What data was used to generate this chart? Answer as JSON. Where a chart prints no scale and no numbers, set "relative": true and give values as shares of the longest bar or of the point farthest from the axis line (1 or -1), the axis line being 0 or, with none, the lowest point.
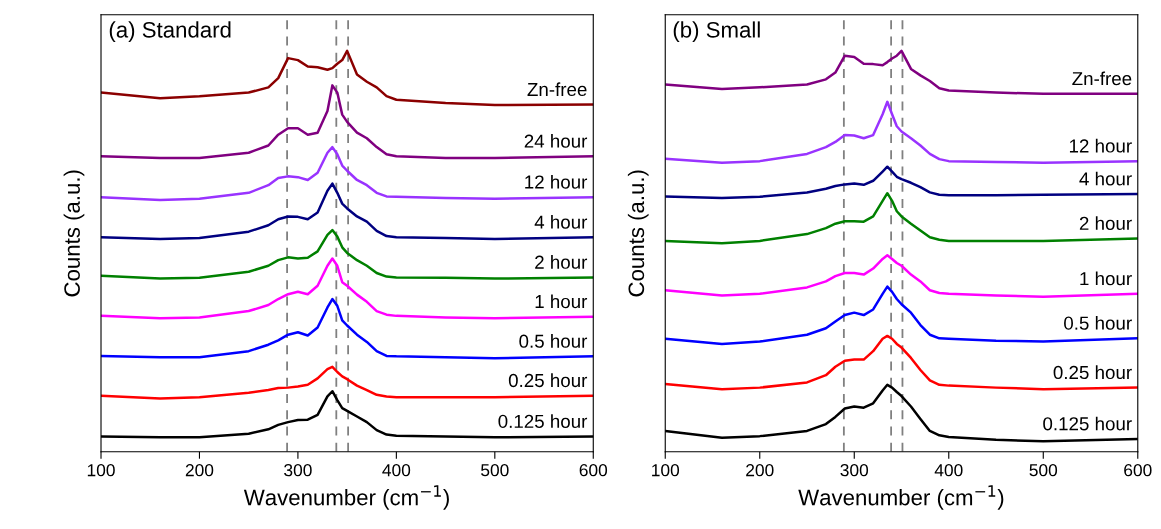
{
  "chart_data": [
    {
      "type": "line",
      "title": "(a) Standard",
      "xlabel": "Wavenumber (cm$^{−1}$)",
      "ylabel": "Counts (a.u.)",
      "relative": true,
      "tick_labels": "x",
      "grid": false,
      "legend": false,
      "xlim": [
        100,
        600
      ],
      "xticks": [
        100,
        200,
        300,
        400,
        500,
        600
      ],
      "x": [
        100,
        160,
        200,
        250,
        270,
        280,
        290,
        300,
        310,
        320,
        330,
        335,
        340,
        345,
        350,
        360,
        370,
        380,
        390,
        400,
        450,
        500,
        600
      ],
      "ref_lines": [
        {
          "axis": "x",
          "value": 289,
          "color": "#808080",
          "line_style": "dashed"
        },
        {
          "axis": "x",
          "value": 339,
          "color": "#808080",
          "line_style": "dashed"
        },
        {
          "axis": "x",
          "value": 351,
          "color": "#808080",
          "line_style": "dashed"
        }
      ],
      "series": [
        {
          "name": "Zn-free",
          "color": "#8b0000",
          "values": [
            0.896,
            0.882,
            0.887,
            0.896,
            0.909,
            0.932,
            0.982,
            0.977,
            0.961,
            0.959,
            0.953,
            0.957,
            0.968,
            0.977,
            1,
            0.941,
            0.923,
            0.909,
            0.887,
            0.878,
            0.87,
            0.865,
            0.866
          ]
        },
        {
          "name": "24 hour",
          "color": "#800080",
          "values": [
            0.737,
            0.733,
            0.733,
            0.746,
            0.764,
            0.791,
            0.807,
            0.807,
            0.791,
            0.796,
            0.85,
            0.914,
            0.896,
            0.841,
            0.823,
            0.796,
            0.782,
            0.76,
            0.742,
            0.737,
            0.733,
            0.733,
            0.737
          ]
        },
        {
          "name": "12 hour",
          "color": "#9933ff",
          "values": [
            0.635,
            0.628,
            0.631,
            0.646,
            0.665,
            0.683,
            0.687,
            0.685,
            0.678,
            0.696,
            0.746,
            0.76,
            0.742,
            0.714,
            0.701,
            0.678,
            0.665,
            0.646,
            0.637,
            0.636,
            0.633,
            0.631,
            0.635
          ]
        },
        {
          "name": "4 hour",
          "color": "#000080",
          "values": [
            0.535,
            0.531,
            0.533,
            0.549,
            0.565,
            0.58,
            0.587,
            0.586,
            0.58,
            0.597,
            0.651,
            0.669,
            0.646,
            0.619,
            0.607,
            0.587,
            0.574,
            0.551,
            0.538,
            0.535,
            0.533,
            0.531,
            0.535
          ]
        },
        {
          "name": "2 hour",
          "color": "#008000",
          "values": [
            0.439,
            0.432,
            0.434,
            0.449,
            0.464,
            0.478,
            0.485,
            0.482,
            0.484,
            0.5,
            0.541,
            0.553,
            0.537,
            0.51,
            0.496,
            0.478,
            0.464,
            0.446,
            0.437,
            0.435,
            0.434,
            0.432,
            0.435
          ]
        },
        {
          "name": "1 hour",
          "color": "#ff00ff",
          "values": [
            0.339,
            0.333,
            0.335,
            0.351,
            0.366,
            0.381,
            0.393,
            0.399,
            0.393,
            0.414,
            0.464,
            0.482,
            0.464,
            0.423,
            0.414,
            0.392,
            0.374,
            0.351,
            0.342,
            0.339,
            0.335,
            0.333,
            0.337
          ]
        },
        {
          "name": "0.5 hour",
          "color": "#0000ff",
          "values": [
            0.239,
            0.236,
            0.236,
            0.251,
            0.267,
            0.278,
            0.292,
            0.298,
            0.29,
            0.31,
            0.36,
            0.381,
            0.364,
            0.328,
            0.315,
            0.292,
            0.274,
            0.251,
            0.239,
            0.238,
            0.236,
            0.233,
            0.238
          ]
        },
        {
          "name": "0.25 hour",
          "color": "#ff0000",
          "values": [
            0.14,
            0.133,
            0.136,
            0.147,
            0.154,
            0.159,
            0.16,
            0.163,
            0.167,
            0.183,
            0.206,
            0.212,
            0.199,
            0.188,
            0.181,
            0.165,
            0.154,
            0.142,
            0.138,
            0.136,
            0.136,
            0.136,
            0.14
          ]
        },
        {
          "name": "0.125 hour",
          "color": "#000000",
          "values": [
            0.038,
            0.036,
            0.036,
            0.045,
            0.056,
            0.067,
            0.074,
            0.079,
            0.08,
            0.092,
            0.138,
            0.151,
            0.129,
            0.109,
            0.102,
            0.088,
            0.074,
            0.054,
            0.043,
            0.04,
            0.038,
            0.036,
            0.038
          ]
        }
      ]
    },
    {
      "type": "line",
      "title": "(b) Small",
      "xlabel": "Wavenumber (cm$^{−1}$)",
      "ylabel": "Counts (a.u.)",
      "relative": true,
      "tick_labels": "x",
      "grid": false,
      "legend": false,
      "xlim": [
        100,
        600
      ],
      "xticks": [
        100,
        200,
        300,
        400,
        500,
        600
      ],
      "x": [
        100,
        160,
        200,
        250,
        270,
        280,
        290,
        300,
        310,
        320,
        330,
        335,
        340,
        345,
        350,
        360,
        370,
        380,
        390,
        400,
        450,
        500,
        600
      ],
      "ref_lines": [
        {
          "axis": "x",
          "value": 289,
          "color": "#808080",
          "line_style": "dashed"
        },
        {
          "axis": "x",
          "value": 339,
          "color": "#808080",
          "line_style": "dashed"
        },
        {
          "axis": "x",
          "value": 351,
          "color": "#808080",
          "line_style": "dashed"
        }
      ],
      "series": [
        {
          "name": "Zn-free",
          "color": "#800080",
          "values": [
            0.916,
            0.905,
            0.909,
            0.916,
            0.929,
            0.946,
            0.988,
            0.985,
            0.968,
            0.967,
            0.964,
            0.972,
            0.981,
            0.988,
            1,
            0.955,
            0.939,
            0.925,
            0.907,
            0.901,
            0.896,
            0.893,
            0.893
          ]
        },
        {
          "name": "12 hour",
          "color": "#9933ff",
          "values": [
            0.731,
            0.721,
            0.725,
            0.743,
            0.76,
            0.773,
            0.79,
            0.789,
            0.782,
            0.79,
            0.842,
            0.873,
            0.842,
            0.812,
            0.799,
            0.782,
            0.764,
            0.743,
            0.73,
            0.725,
            0.723,
            0.721,
            0.725
          ]
        },
        {
          "name": "4 hour",
          "color": "#000080",
          "values": [
            0.637,
            0.633,
            0.636,
            0.647,
            0.656,
            0.663,
            0.667,
            0.669,
            0.666,
            0.676,
            0.699,
            0.711,
            0.699,
            0.686,
            0.68,
            0.671,
            0.66,
            0.647,
            0.641,
            0.64,
            0.64,
            0.641,
            0.643
          ]
        },
        {
          "name": "2 hour",
          "color": "#008000",
          "values": [
            0.526,
            0.52,
            0.526,
            0.543,
            0.558,
            0.569,
            0.575,
            0.575,
            0.574,
            0.587,
            0.626,
            0.645,
            0.626,
            0.6,
            0.587,
            0.569,
            0.552,
            0.535,
            0.529,
            0.526,
            0.526,
            0.526,
            0.532
          ]
        },
        {
          "name": "1 hour",
          "color": "#ff00ff",
          "values": [
            0.403,
            0.39,
            0.394,
            0.41,
            0.425,
            0.438,
            0.446,
            0.446,
            0.442,
            0.457,
            0.481,
            0.49,
            0.481,
            0.471,
            0.464,
            0.442,
            0.425,
            0.403,
            0.396,
            0.394,
            0.39,
            0.387,
            0.394
          ]
        },
        {
          "name": "0.5 hour",
          "color": "#0000ff",
          "values": [
            0.282,
            0.269,
            0.275,
            0.292,
            0.308,
            0.325,
            0.341,
            0.347,
            0.341,
            0.355,
            0.394,
            0.412,
            0.399,
            0.381,
            0.368,
            0.347,
            0.316,
            0.292,
            0.283,
            0.282,
            0.277,
            0.275,
            0.283
          ]
        },
        {
          "name": "0.25 hour",
          "color": "#ff0000",
          "values": [
            0.169,
            0.156,
            0.16,
            0.173,
            0.191,
            0.212,
            0.227,
            0.23,
            0.23,
            0.251,
            0.282,
            0.289,
            0.282,
            0.269,
            0.26,
            0.234,
            0.204,
            0.178,
            0.167,
            0.165,
            0.16,
            0.156,
            0.16
          ]
        },
        {
          "name": "0.125 hour",
          "color": "#000000",
          "values": [
            0.052,
            0.035,
            0.039,
            0.052,
            0.069,
            0.087,
            0.108,
            0.113,
            0.11,
            0.121,
            0.153,
            0.167,
            0.16,
            0.149,
            0.139,
            0.113,
            0.082,
            0.052,
            0.041,
            0.037,
            0.03,
            0.026,
            0.032
          ]
        }
      ]
    }
  ]
}
